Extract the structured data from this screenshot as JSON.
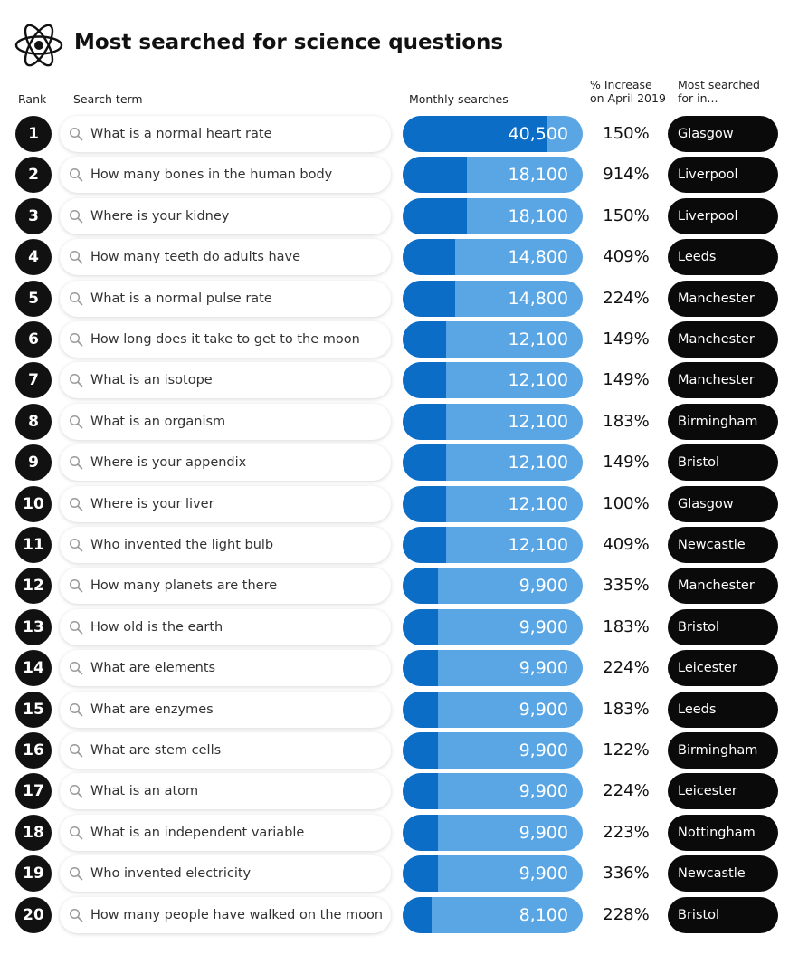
{
  "header": {
    "title": "Most searched for science questions",
    "icon": "atom-icon"
  },
  "columns": {
    "rank": "Rank",
    "term": "Search term",
    "monthly": "Monthly searches",
    "increase_line1": "% Increase",
    "increase_line2": "on April 2019",
    "city_line1": "Most searched",
    "city_line2": "for in..."
  },
  "colors": {
    "bar_dark": "#0b6dc6",
    "bar_light": "#5aa6e4",
    "badge": "#0a0a0a"
  },
  "chart_data": {
    "type": "table",
    "title": "Most searched for science questions",
    "rows": [
      {
        "rank": "1",
        "term": "What is a normal heart rate",
        "searches": 40500,
        "searches_label": "40,500",
        "increase": "150%",
        "city": "Glasgow"
      },
      {
        "rank": "2",
        "term": "How many bones in the human body",
        "searches": 18100,
        "searches_label": "18,100",
        "increase": "914%",
        "city": "Liverpool"
      },
      {
        "rank": "3",
        "term": "Where is your kidney",
        "searches": 18100,
        "searches_label": "18,100",
        "increase": "150%",
        "city": "Liverpool"
      },
      {
        "rank": "4",
        "term": "How many teeth do adults have",
        "searches": 14800,
        "searches_label": "14,800",
        "increase": "409%",
        "city": "Leeds"
      },
      {
        "rank": "5",
        "term": "What is a normal pulse rate",
        "searches": 14800,
        "searches_label": "14,800",
        "increase": "224%",
        "city": "Manchester"
      },
      {
        "rank": "6",
        "term": "How long does it take to get to the moon",
        "searches": 12100,
        "searches_label": "12,100",
        "increase": "149%",
        "city": "Manchester"
      },
      {
        "rank": "7",
        "term": "What is an isotope",
        "searches": 12100,
        "searches_label": "12,100",
        "increase": "149%",
        "city": "Manchester"
      },
      {
        "rank": "8",
        "term": "What is an organism",
        "searches": 12100,
        "searches_label": "12,100",
        "increase": "183%",
        "city": "Birmingham"
      },
      {
        "rank": "9",
        "term": "Where is your appendix",
        "searches": 12100,
        "searches_label": "12,100",
        "increase": "149%",
        "city": "Bristol"
      },
      {
        "rank": "10",
        "term": "Where is your liver",
        "searches": 12100,
        "searches_label": "12,100",
        "increase": "100%",
        "city": "Glasgow"
      },
      {
        "rank": "11",
        "term": "Who invented the light bulb",
        "searches": 12100,
        "searches_label": "12,100",
        "increase": "409%",
        "city": "Newcastle"
      },
      {
        "rank": "12",
        "term": "How many planets are there",
        "searches": 9900,
        "searches_label": "9,900",
        "increase": "335%",
        "city": "Manchester"
      },
      {
        "rank": "13",
        "term": "How old is the earth",
        "searches": 9900,
        "searches_label": "9,900",
        "increase": "183%",
        "city": "Bristol"
      },
      {
        "rank": "14",
        "term": "What are elements",
        "searches": 9900,
        "searches_label": "9,900",
        "increase": "224%",
        "city": "Leicester"
      },
      {
        "rank": "15",
        "term": "What are enzymes",
        "searches": 9900,
        "searches_label": "9,900",
        "increase": "183%",
        "city": "Leeds"
      },
      {
        "rank": "16",
        "term": "What are stem cells",
        "searches": 9900,
        "searches_label": "9,900",
        "increase": "122%",
        "city": "Birmingham"
      },
      {
        "rank": "17",
        "term": "What is an atom",
        "searches": 9900,
        "searches_label": "9,900",
        "increase": "224%",
        "city": "Leicester"
      },
      {
        "rank": "18",
        "term": "What is an independent variable",
        "searches": 9900,
        "searches_label": "9,900",
        "increase": "223%",
        "city": "Nottingham"
      },
      {
        "rank": "19",
        "term": "Who invented electricity",
        "searches": 9900,
        "searches_label": "9,900",
        "increase": "336%",
        "city": "Newcastle"
      },
      {
        "rank": "20",
        "term": "How many people have walked on the moon",
        "searches": 8100,
        "searches_label": "8,100",
        "increase": "228%",
        "city": "Bristol"
      }
    ]
  }
}
